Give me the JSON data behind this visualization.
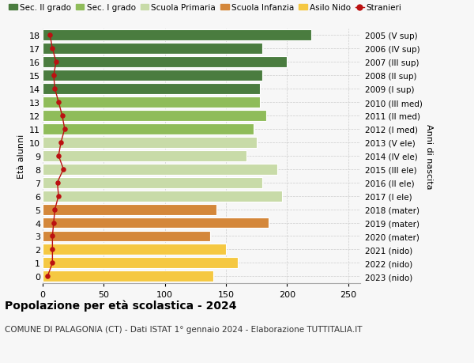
{
  "ages": [
    0,
    1,
    2,
    3,
    4,
    5,
    6,
    7,
    8,
    9,
    10,
    11,
    12,
    13,
    14,
    15,
    16,
    17,
    18
  ],
  "bar_values": [
    140,
    160,
    150,
    137,
    185,
    142,
    196,
    180,
    192,
    167,
    175,
    173,
    183,
    178,
    178,
    180,
    200,
    180,
    220
  ],
  "stranieri": [
    4,
    8,
    8,
    8,
    9,
    10,
    13,
    12,
    17,
    13,
    15,
    18,
    16,
    13,
    10,
    9,
    11,
    8,
    6
  ],
  "bar_colors": [
    "#f5c842",
    "#f5c842",
    "#f5c842",
    "#d4873a",
    "#d4873a",
    "#d4873a",
    "#c8dba8",
    "#c8dba8",
    "#c8dba8",
    "#c8dba8",
    "#c8dba8",
    "#8fbc5a",
    "#8fbc5a",
    "#8fbc5a",
    "#4a7c3f",
    "#4a7c3f",
    "#4a7c3f",
    "#4a7c3f",
    "#4a7c3f"
  ],
  "right_labels": [
    "2023 (nido)",
    "2022 (nido)",
    "2021 (nido)",
    "2020 (mater)",
    "2019 (mater)",
    "2018 (mater)",
    "2017 (I ele)",
    "2016 (II ele)",
    "2015 (III ele)",
    "2014 (IV ele)",
    "2013 (V ele)",
    "2012 (I med)",
    "2011 (II med)",
    "2010 (III med)",
    "2009 (I sup)",
    "2008 (II sup)",
    "2007 (III sup)",
    "2006 (IV sup)",
    "2005 (V sup)"
  ],
  "ylabel_left": "Età alunni",
  "ylabel_right": "Anni di nascita",
  "title": "Popolazione per età scolastica - 2024",
  "subtitle": "COMUNE DI PALAGONIA (CT) - Dati ISTAT 1° gennaio 2024 - Elaborazione TUTTITALIA.IT",
  "xlim": [
    0,
    260
  ],
  "xticks": [
    0,
    50,
    100,
    150,
    200,
    250
  ],
  "legend_labels": [
    "Sec. II grado",
    "Sec. I grado",
    "Scuola Primaria",
    "Scuola Infanzia",
    "Asilo Nido",
    "Stranieri"
  ],
  "legend_colors": [
    "#4a7c3f",
    "#8fbc5a",
    "#c8dba8",
    "#d4873a",
    "#f5c842",
    "#bb1111"
  ],
  "stranieri_color": "#bb1111",
  "bg_color": "#f7f7f7",
  "bar_height": 0.82,
  "grid_color": "#cccccc"
}
